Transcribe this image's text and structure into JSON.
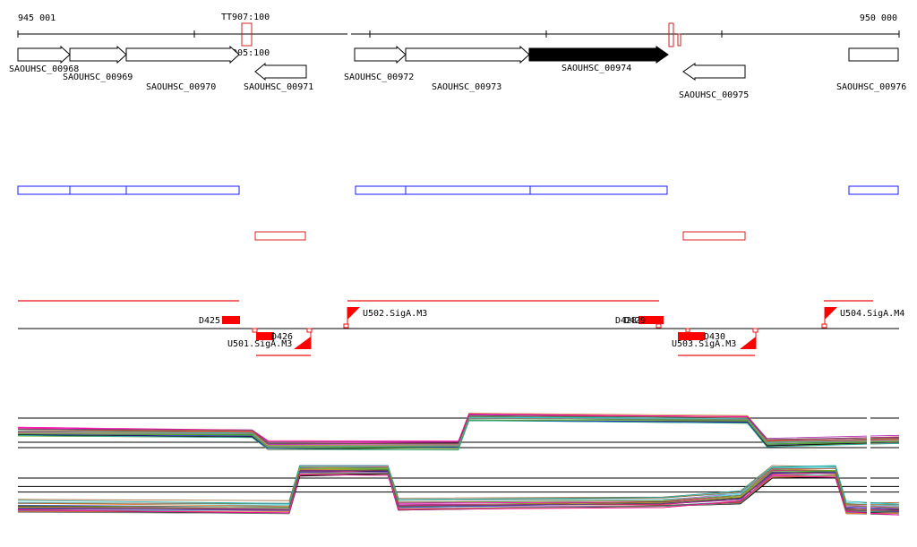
{
  "axis": {
    "start_label": "945 001",
    "end_label": "950 000",
    "start": 945001,
    "end": 950000
  },
  "terminators": [
    {
      "label": "TT907:100"
    },
    {
      "label": "TT905:100"
    }
  ],
  "genes": [
    {
      "name": "SAOUHSC_00968",
      "start": 945001,
      "end": 945580,
      "strand": "+",
      "highlight": false
    },
    {
      "name": "SAOUHSC_00969",
      "start": 945580,
      "end": 946130,
      "strand": "+",
      "highlight": false
    },
    {
      "name": "SAOUHSC_00970",
      "start": 946130,
      "end": 948210,
      "strand": "+",
      "highlight": false
    },
    {
      "name": "SAOUHSC_00971",
      "start": 946710,
      "end": 947290,
      "strand": "-",
      "highlight": false
    },
    {
      "name": "SAOUHSC_00972",
      "start": 947320,
      "end": 947830,
      "strand": "+",
      "highlight": false
    },
    {
      "name": "SAOUHSC_00973",
      "start": 947830,
      "end": 949040,
      "strand": "+",
      "highlight": false
    },
    {
      "name": "SAOUHSC_00974",
      "start": 949040,
      "end": 950350,
      "strand": "+",
      "highlight": true
    },
    {
      "name": "SAOUHSC_00975",
      "start": 950650,
      "end": 951260,
      "strand": "-",
      "highlight": false
    },
    {
      "name": "SAOUHSC_00976",
      "start": 950600,
      "end": 951090,
      "strand": "+",
      "highlight": false
    }
  ],
  "segments": [
    {
      "name": "D425"
    },
    {
      "name": "D426"
    },
    {
      "name": "D428"
    },
    {
      "name": "D429"
    },
    {
      "name": "D430"
    }
  ],
  "promoters": [
    {
      "name": "U501.SigA.M3"
    },
    {
      "name": "U502.SigA.M3"
    },
    {
      "name": "U503.SigA.M3"
    },
    {
      "name": "U504.SigA.M4"
    }
  ],
  "colors": {
    "axis": "#000000",
    "gene_outline": "#000000",
    "gene_highlight": "#000000",
    "operon": "#1a1aff",
    "antisense": "#dd2222",
    "feature": "#ff0000",
    "track_line": "#000000"
  },
  "chart_data": {
    "type": "line",
    "note_tracks": "expression profiles",
    "tracks": [
      {
        "baseline_levels": [
          0.8,
          0.35,
          0.25
        ],
        "profile": [
          [
            945001,
            0.55
          ],
          [
            946330,
            0.52
          ],
          [
            946420,
            0.3
          ],
          [
            947500,
            0.3
          ],
          [
            947560,
            0.82
          ],
          [
            949140,
            0.78
          ],
          [
            949250,
            0.35
          ],
          [
            950000,
            0.4
          ]
        ]
      },
      {
        "baseline_levels": [
          0.82,
          0.7,
          0.62
        ],
        "profile": [
          [
            945001,
            0.42
          ],
          [
            946540,
            0.4
          ],
          [
            946600,
            0.95
          ],
          [
            947100,
            0.95
          ],
          [
            947160,
            0.45
          ],
          [
            948660,
            0.48
          ],
          [
            949100,
            0.55
          ],
          [
            949280,
            0.92
          ],
          [
            949640,
            0.92
          ],
          [
            949700,
            0.4
          ],
          [
            950000,
            0.38
          ]
        ]
      }
    ]
  }
}
